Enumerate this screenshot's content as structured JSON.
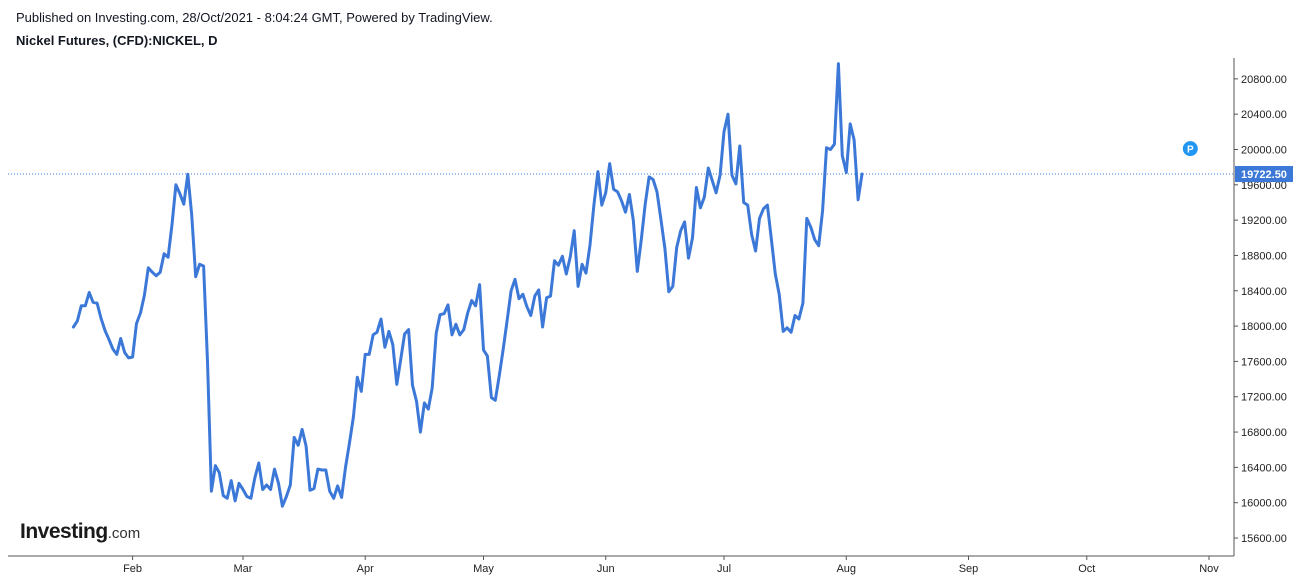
{
  "header": {
    "published": "Published on Investing.com, 28/Oct/2021 - 8:04:24 GMT, Powered by TradingView.",
    "symbol": "Nickel Futures, (CFD):NICKEL, D"
  },
  "logo": {
    "brand": "Investing",
    "suffix": ".com"
  },
  "colors": {
    "line": "#3c78d8",
    "last_label_bg": "#3c78d8",
    "p_marker": "#2196f3",
    "axis": "#555555"
  },
  "chart_data": {
    "type": "line",
    "title": "Nickel Futures, (CFD):NICKEL, D",
    "x_unit": "day of 2021",
    "x_tick_labels": [
      {
        "label": "Feb",
        "x": 32
      },
      {
        "label": "Mar",
        "x": 60
      },
      {
        "label": "Apr",
        "x": 91
      },
      {
        "label": "May",
        "x": 121
      },
      {
        "label": "Jun",
        "x": 152
      },
      {
        "label": "Jul",
        "x": 182
      },
      {
        "label": "Aug",
        "x": 213
      },
      {
        "label": "Sep",
        "x": 244
      },
      {
        "label": "Oct",
        "x": 274
      },
      {
        "label": "Nov",
        "x": 305
      }
    ],
    "y_ticks": [
      15600,
      16000,
      16400,
      16800,
      17200,
      17600,
      18000,
      18400,
      18800,
      19200,
      19600,
      20000,
      20400,
      20800
    ],
    "y_tick_labels": [
      "15600.00",
      "16000.00",
      "16400.00",
      "16800.00",
      "17200.00",
      "17600.00",
      "18000.00",
      "18400.00",
      "18800.00",
      "19200.00",
      "19600.00",
      "20000.00",
      "20400.00",
      "20800.00"
    ],
    "xlim": [
      17,
      308
    ],
    "ylim": [
      15350,
      21100
    ],
    "last_price": 19722.5,
    "last_price_label": "19722.50",
    "marker": {
      "label": "P",
      "x": 300,
      "y": 20010
    },
    "series": [
      {
        "values": [
          [
            17,
            17990
          ],
          [
            18,
            18060
          ],
          [
            19,
            18230
          ],
          [
            20,
            18230
          ],
          [
            21,
            18380
          ],
          [
            22,
            18270
          ],
          [
            23,
            18260
          ],
          [
            24,
            18090
          ],
          [
            25,
            17950
          ],
          [
            26,
            17850
          ],
          [
            27,
            17740
          ],
          [
            28,
            17680
          ],
          [
            29,
            17860
          ],
          [
            30,
            17700
          ],
          [
            31,
            17640
          ],
          [
            32,
            17650
          ],
          [
            33,
            18030
          ],
          [
            34,
            18150
          ],
          [
            35,
            18350
          ],
          [
            36,
            18660
          ],
          [
            37,
            18610
          ],
          [
            38,
            18570
          ],
          [
            39,
            18610
          ],
          [
            40,
            18820
          ],
          [
            41,
            18780
          ],
          [
            42,
            19150
          ],
          [
            43,
            19600
          ],
          [
            44,
            19500
          ],
          [
            45,
            19380
          ],
          [
            46,
            19720
          ],
          [
            47,
            19260
          ],
          [
            48,
            18560
          ],
          [
            49,
            18700
          ],
          [
            50,
            18680
          ],
          [
            51,
            17600
          ],
          [
            52,
            16130
          ],
          [
            53,
            16420
          ],
          [
            54,
            16340
          ],
          [
            55,
            16080
          ],
          [
            56,
            16050
          ],
          [
            57,
            16250
          ],
          [
            58,
            16020
          ],
          [
            59,
            16220
          ],
          [
            60,
            16150
          ],
          [
            61,
            16070
          ],
          [
            62,
            16050
          ],
          [
            63,
            16280
          ],
          [
            64,
            16450
          ],
          [
            65,
            16150
          ],
          [
            66,
            16200
          ],
          [
            67,
            16150
          ],
          [
            68,
            16380
          ],
          [
            69,
            16220
          ],
          [
            70,
            15960
          ],
          [
            71,
            16070
          ],
          [
            72,
            16200
          ],
          [
            73,
            16740
          ],
          [
            74,
            16650
          ],
          [
            75,
            16830
          ],
          [
            76,
            16640
          ],
          [
            77,
            16140
          ],
          [
            78,
            16160
          ],
          [
            79,
            16380
          ],
          [
            80,
            16370
          ],
          [
            81,
            16370
          ],
          [
            82,
            16130
          ],
          [
            83,
            16050
          ],
          [
            84,
            16190
          ],
          [
            85,
            16060
          ],
          [
            86,
            16400
          ],
          [
            87,
            16670
          ],
          [
            88,
            16970
          ],
          [
            89,
            17420
          ],
          [
            90,
            17260
          ],
          [
            91,
            17680
          ],
          [
            92,
            17680
          ],
          [
            93,
            17900
          ],
          [
            94,
            17930
          ],
          [
            95,
            18080
          ],
          [
            96,
            17760
          ],
          [
            97,
            17940
          ],
          [
            98,
            17790
          ],
          [
            99,
            17340
          ],
          [
            100,
            17620
          ],
          [
            101,
            17910
          ],
          [
            102,
            17960
          ],
          [
            103,
            17330
          ],
          [
            104,
            17150
          ],
          [
            105,
            16800
          ],
          [
            106,
            17130
          ],
          [
            107,
            17060
          ],
          [
            108,
            17300
          ],
          [
            109,
            17920
          ],
          [
            110,
            18130
          ],
          [
            111,
            18140
          ],
          [
            112,
            18240
          ],
          [
            113,
            17900
          ],
          [
            114,
            18020
          ],
          [
            115,
            17900
          ],
          [
            116,
            17960
          ],
          [
            117,
            18150
          ],
          [
            118,
            18290
          ],
          [
            119,
            18230
          ],
          [
            120,
            18470
          ],
          [
            121,
            17730
          ],
          [
            122,
            17660
          ],
          [
            123,
            17190
          ],
          [
            124,
            17160
          ],
          [
            125,
            17440
          ],
          [
            126,
            17740
          ],
          [
            127,
            18070
          ],
          [
            128,
            18400
          ],
          [
            129,
            18530
          ],
          [
            130,
            18310
          ],
          [
            131,
            18360
          ],
          [
            132,
            18220
          ],
          [
            133,
            18120
          ],
          [
            134,
            18340
          ],
          [
            135,
            18410
          ],
          [
            136,
            17990
          ],
          [
            137,
            18320
          ],
          [
            138,
            18340
          ],
          [
            139,
            18740
          ],
          [
            140,
            18690
          ],
          [
            141,
            18790
          ],
          [
            142,
            18590
          ],
          [
            143,
            18780
          ],
          [
            144,
            19080
          ],
          [
            145,
            18450
          ],
          [
            146,
            18700
          ],
          [
            147,
            18600
          ],
          [
            148,
            18920
          ],
          [
            149,
            19370
          ],
          [
            150,
            19750
          ],
          [
            151,
            19370
          ],
          [
            152,
            19510
          ],
          [
            153,
            19840
          ],
          [
            154,
            19550
          ],
          [
            155,
            19520
          ],
          [
            156,
            19420
          ],
          [
            157,
            19290
          ],
          [
            158,
            19490
          ],
          [
            159,
            19200
          ],
          [
            160,
            18620
          ],
          [
            161,
            18970
          ],
          [
            162,
            19380
          ],
          [
            163,
            19690
          ],
          [
            164,
            19660
          ],
          [
            165,
            19520
          ],
          [
            166,
            19210
          ],
          [
            167,
            18880
          ],
          [
            168,
            18390
          ],
          [
            169,
            18450
          ],
          [
            170,
            18890
          ],
          [
            171,
            19080
          ],
          [
            172,
            19180
          ],
          [
            173,
            18770
          ],
          [
            174,
            19000
          ],
          [
            175,
            19570
          ],
          [
            176,
            19340
          ],
          [
            177,
            19460
          ],
          [
            178,
            19790
          ],
          [
            179,
            19650
          ],
          [
            180,
            19510
          ],
          [
            181,
            19710
          ],
          [
            182,
            20200
          ],
          [
            183,
            20400
          ],
          [
            184,
            19710
          ],
          [
            185,
            19610
          ],
          [
            186,
            20040
          ],
          [
            187,
            19400
          ],
          [
            188,
            19370
          ],
          [
            189,
            19040
          ],
          [
            190,
            18850
          ],
          [
            191,
            19220
          ],
          [
            192,
            19330
          ],
          [
            193,
            19370
          ],
          [
            194,
            18990
          ],
          [
            195,
            18590
          ],
          [
            196,
            18360
          ],
          [
            197,
            17940
          ],
          [
            198,
            17980
          ],
          [
            199,
            17930
          ],
          [
            200,
            18120
          ],
          [
            201,
            18080
          ],
          [
            202,
            18260
          ],
          [
            203,
            19220
          ],
          [
            204,
            19120
          ],
          [
            205,
            18980
          ],
          [
            206,
            18910
          ],
          [
            207,
            19310
          ],
          [
            208,
            20020
          ],
          [
            209,
            20000
          ],
          [
            210,
            20060
          ],
          [
            211,
            20970
          ],
          [
            212,
            19930
          ],
          [
            213,
            19740
          ],
          [
            214,
            20290
          ],
          [
            215,
            20110
          ],
          [
            216,
            19430
          ],
          [
            217,
            19722.5
          ]
        ]
      }
    ],
    "x_map_note": "",
    "grid": false,
    "legend": "none"
  }
}
